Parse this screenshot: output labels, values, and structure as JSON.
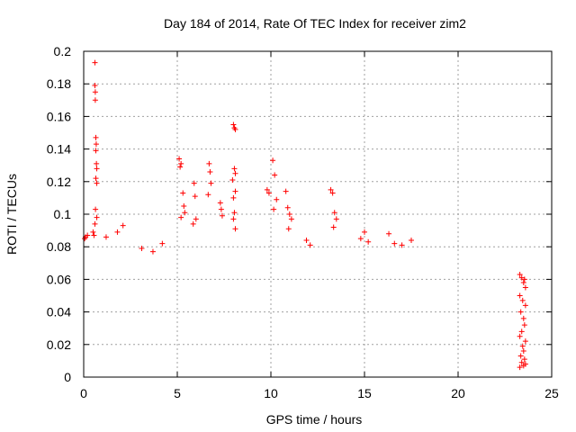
{
  "chart_data": {
    "type": "scatter",
    "title": "Day 184 of 2014, Rate Of TEC Index for receiver zim2",
    "xlabel": "GPS time / hours",
    "ylabel": "ROTI / TECUs",
    "xlim": [
      0,
      25
    ],
    "ylim": [
      0,
      0.2
    ],
    "xticks": [
      0,
      5,
      10,
      15,
      20,
      25
    ],
    "xtick_labels": [
      "0",
      "5",
      "10",
      "15",
      "20",
      "25"
    ],
    "yticks": [
      0,
      0.02,
      0.04,
      0.06,
      0.08,
      0.1,
      0.12,
      0.14,
      0.16,
      0.18,
      0.2
    ],
    "ytick_labels": [
      "0",
      "0.02",
      "0.04",
      "0.06",
      "0.08",
      "0.1",
      "0.12",
      "0.14",
      "0.16",
      "0.18",
      "0.2"
    ],
    "grid": true,
    "marker": "+",
    "marker_color": "#ff0000",
    "series": [
      {
        "points": [
          [
            0.6,
            0.193
          ],
          [
            0.6,
            0.179
          ],
          [
            0.62,
            0.175
          ],
          [
            0.62,
            0.17
          ],
          [
            0.65,
            0.147
          ],
          [
            0.67,
            0.143
          ],
          [
            0.65,
            0.139
          ],
          [
            0.68,
            0.131
          ],
          [
            0.7,
            0.128
          ],
          [
            0.65,
            0.122
          ],
          [
            0.7,
            0.119
          ],
          [
            0.63,
            0.103
          ],
          [
            0.7,
            0.098
          ],
          [
            0.6,
            0.094
          ],
          [
            0.1,
            0.086
          ],
          [
            0.05,
            0.085
          ],
          [
            0.2,
            0.087
          ],
          [
            0.5,
            0.089
          ],
          [
            0.55,
            0.087
          ],
          [
            5.1,
            0.134
          ],
          [
            5.2,
            0.131
          ],
          [
            5.15,
            0.129
          ],
          [
            5.3,
            0.113
          ],
          [
            5.35,
            0.105
          ],
          [
            5.4,
            0.101
          ],
          [
            5.2,
            0.098
          ],
          [
            5.9,
            0.119
          ],
          [
            5.95,
            0.111
          ],
          [
            6.0,
            0.097
          ],
          [
            5.85,
            0.094
          ],
          [
            6.7,
            0.131
          ],
          [
            6.75,
            0.126
          ],
          [
            6.8,
            0.119
          ],
          [
            6.65,
            0.112
          ],
          [
            7.3,
            0.107
          ],
          [
            7.35,
            0.103
          ],
          [
            7.4,
            0.099
          ],
          [
            8.0,
            0.155
          ],
          [
            8.05,
            0.153
          ],
          [
            8.1,
            0.152
          ],
          [
            8.05,
            0.128
          ],
          [
            8.1,
            0.125
          ],
          [
            7.95,
            0.121
          ],
          [
            8.1,
            0.114
          ],
          [
            8.0,
            0.11
          ],
          [
            8.05,
            0.101
          ],
          [
            8.0,
            0.097
          ],
          [
            8.1,
            0.091
          ],
          [
            9.8,
            0.115
          ],
          [
            9.9,
            0.113
          ],
          [
            10.1,
            0.133
          ],
          [
            10.2,
            0.124
          ],
          [
            10.3,
            0.109
          ],
          [
            10.15,
            0.103
          ],
          [
            10.8,
            0.114
          ],
          [
            10.9,
            0.104
          ],
          [
            11.0,
            0.1
          ],
          [
            11.1,
            0.097
          ],
          [
            10.95,
            0.091
          ],
          [
            13.2,
            0.115
          ],
          [
            13.3,
            0.113
          ],
          [
            13.4,
            0.101
          ],
          [
            13.5,
            0.097
          ],
          [
            13.35,
            0.092
          ],
          [
            11.9,
            0.084
          ],
          [
            12.1,
            0.081
          ],
          [
            14.8,
            0.085
          ],
          [
            15.0,
            0.089
          ],
          [
            15.2,
            0.083
          ],
          [
            16.3,
            0.088
          ],
          [
            16.6,
            0.082
          ],
          [
            17.0,
            0.081
          ],
          [
            17.5,
            0.084
          ],
          [
            4.2,
            0.082
          ],
          [
            2.1,
            0.093
          ],
          [
            1.8,
            0.089
          ],
          [
            1.2,
            0.086
          ],
          [
            3.1,
            0.079
          ],
          [
            3.7,
            0.077
          ],
          [
            23.3,
            0.063
          ],
          [
            23.4,
            0.061
          ],
          [
            23.55,
            0.06
          ],
          [
            23.5,
            0.058
          ],
          [
            23.6,
            0.055
          ],
          [
            23.3,
            0.05
          ],
          [
            23.45,
            0.047
          ],
          [
            23.6,
            0.044
          ],
          [
            23.35,
            0.04
          ],
          [
            23.5,
            0.036
          ],
          [
            23.55,
            0.032
          ],
          [
            23.4,
            0.028
          ],
          [
            23.3,
            0.025
          ],
          [
            23.6,
            0.022
          ],
          [
            23.45,
            0.019
          ],
          [
            23.5,
            0.016
          ],
          [
            23.35,
            0.013
          ],
          [
            23.55,
            0.011
          ],
          [
            23.4,
            0.009
          ],
          [
            23.6,
            0.008
          ],
          [
            23.3,
            0.006
          ],
          [
            23.5,
            0.007
          ]
        ]
      }
    ]
  }
}
